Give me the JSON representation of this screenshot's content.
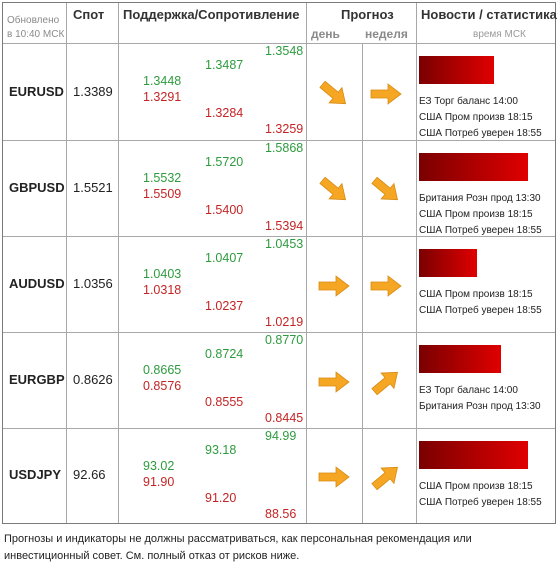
{
  "header": {
    "updated_label": "Обновлено",
    "updated_time": "в 10:40 МСК",
    "spot": "Спот",
    "sr": "Поддержка/Сопротивление",
    "forecast": "Прогноз",
    "day": "день",
    "week": "неделя",
    "news": "Новости / статистика",
    "news_time": "время МСК"
  },
  "rows": [
    {
      "pair": "EURUSD",
      "spot": "1.3389",
      "c1": [
        "1.3448",
        "1.3291"
      ],
      "c2": [
        "1.3487",
        "1.3284"
      ],
      "c3": [
        "1.3548",
        "1.3259"
      ],
      "day": "down-right",
      "week": "right",
      "bar": 0.55,
      "news": [
        "ЕЗ Торг баланс 14:00",
        "США Пром произв 18:15",
        "США Потреб уверен 18:55"
      ]
    },
    {
      "pair": "GBPUSD",
      "spot": "1.5521",
      "c1": [
        "1.5532",
        "1.5509"
      ],
      "c2": [
        "1.5720",
        "1.5400"
      ],
      "c3": [
        "1.5868",
        "1.5394"
      ],
      "day": "down-right",
      "week": "down-right",
      "bar": 0.8,
      "news": [
        "Британия Розн прод 13:30",
        "США Пром произв 18:15",
        "США Потреб уверен 18:55"
      ]
    },
    {
      "pair": "AUDUSD",
      "spot": "1.0356",
      "c1": [
        "1.0403",
        "1.0318"
      ],
      "c2": [
        "1.0407",
        "1.0237"
      ],
      "c3": [
        "1.0453",
        "1.0219"
      ],
      "day": "right",
      "week": "right",
      "bar": 0.43,
      "news": [
        "США Пром произв 18:15",
        "США Потреб уверен 18:55"
      ]
    },
    {
      "pair": "EURGBP",
      "spot": "0.8626",
      "c1": [
        "0.8665",
        "0.8576"
      ],
      "c2": [
        "0.8724",
        "0.8555"
      ],
      "c3": [
        "0.8770",
        "0.8445"
      ],
      "day": "right",
      "week": "up-right",
      "bar": 0.6,
      "news": [
        "ЕЗ Торг баланс 14:00",
        "Британия Розн прод 13:30"
      ]
    },
    {
      "pair": "USDJPY",
      "spot": "92.66",
      "c1": [
        "93.02",
        "91.90"
      ],
      "c2": [
        "93.18",
        "91.20"
      ],
      "c3": [
        "94.99",
        "88.56"
      ],
      "day": "right",
      "week": "up-right",
      "bar": 0.8,
      "news": [
        "США Пром произв 18:15",
        "США Потреб уверен 18:55"
      ]
    }
  ],
  "footer": {
    "line1": "Прогнозы и индикаторы не должны рассматриваться, как персональная рекомендация или",
    "line2": "инвестиционный совет. См. полный отказ от рисков ниже."
  },
  "colors": {
    "support": "#2e9b3e",
    "resistance": "#c42424",
    "arrow": "#f5a623",
    "bar": "#e00000"
  }
}
